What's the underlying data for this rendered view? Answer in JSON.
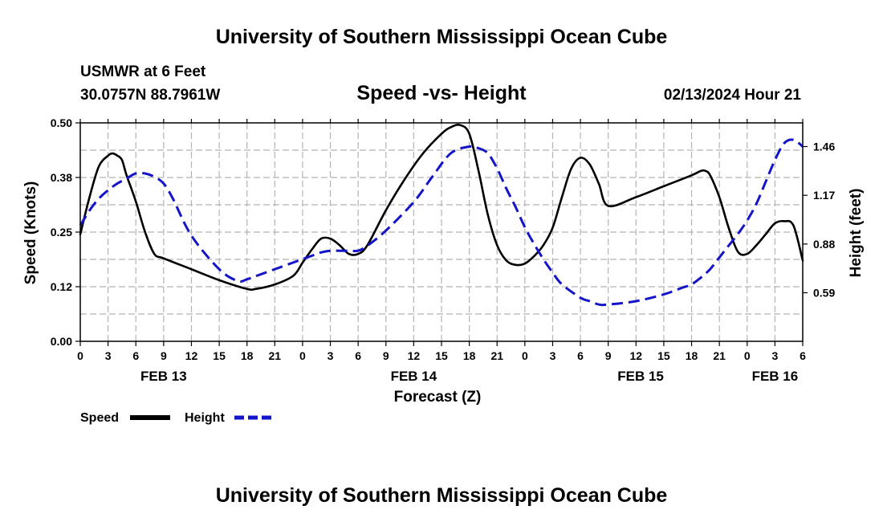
{
  "header": {
    "title": "University of Southern Mississippi Ocean Cube",
    "station": "USMWR at 6 Feet",
    "coords": "30.0757N  88.7961W",
    "chart_title": "Speed -vs- Height",
    "datetime": "02/13/2024 Hour 21"
  },
  "footer": {
    "title": "University of Southern Mississippi Ocean Cube"
  },
  "legend": {
    "speed_label": "Speed",
    "height_label": "Height"
  },
  "colors": {
    "speed": "#000000",
    "height": "#1414c8",
    "grid": "#b4b4b4"
  },
  "chart_data": {
    "type": "line",
    "title": "Speed -vs- Height",
    "xlabel": "Forecast (Z)",
    "ylabel": "Speed (Knots)",
    "y2label": "Height (feet)",
    "xlim": [
      0,
      78
    ],
    "ylim": [
      0,
      0.5
    ],
    "y2lim": [
      0.301,
      1.601
    ],
    "yticks": [
      {
        "v": 0.0,
        "label": "0.00"
      },
      {
        "v": 0.125,
        "label": "0.12"
      },
      {
        "v": 0.25,
        "label": "0.25"
      },
      {
        "v": 0.375,
        "label": "0.38"
      },
      {
        "v": 0.5,
        "label": "0.50"
      }
    ],
    "y2ticks": [
      {
        "v": 0.59,
        "label": "0.59"
      },
      {
        "v": 0.88,
        "label": "0.88"
      },
      {
        "v": 1.17,
        "label": "1.17"
      },
      {
        "v": 1.46,
        "label": "1.46"
      }
    ],
    "xticks": [
      {
        "v": 0,
        "label": "0"
      },
      {
        "v": 3,
        "label": "3"
      },
      {
        "v": 6,
        "label": "6"
      },
      {
        "v": 9,
        "label": "9"
      },
      {
        "v": 12,
        "label": "12"
      },
      {
        "v": 15,
        "label": "15"
      },
      {
        "v": 18,
        "label": "18"
      },
      {
        "v": 21,
        "label": "21"
      },
      {
        "v": 24,
        "label": "0"
      },
      {
        "v": 27,
        "label": "3"
      },
      {
        "v": 30,
        "label": "6"
      },
      {
        "v": 33,
        "label": "9"
      },
      {
        "v": 36,
        "label": "12"
      },
      {
        "v": 39,
        "label": "15"
      },
      {
        "v": 42,
        "label": "18"
      },
      {
        "v": 45,
        "label": "21"
      },
      {
        "v": 48,
        "label": "0"
      },
      {
        "v": 51,
        "label": "3"
      },
      {
        "v": 54,
        "label": "6"
      },
      {
        "v": 57,
        "label": "9"
      },
      {
        "v": 60,
        "label": "12"
      },
      {
        "v": 63,
        "label": "15"
      },
      {
        "v": 66,
        "label": "18"
      },
      {
        "v": 69,
        "label": "21"
      },
      {
        "v": 72,
        "label": "0"
      },
      {
        "v": 75,
        "label": "3"
      },
      {
        "v": 78,
        "label": "6"
      }
    ],
    "date_labels": [
      {
        "v": 9,
        "label": "FEB 13"
      },
      {
        "v": 36,
        "label": "FEB 14"
      },
      {
        "v": 60.5,
        "label": "FEB 15"
      },
      {
        "v": 75,
        "label": "FEB 16"
      }
    ],
    "series": [
      {
        "name": "Speed",
        "axis": "left",
        "style": "solid",
        "x": [
          0,
          1,
          2,
          3,
          3.5,
          4,
          4.5,
          5,
          6,
          7,
          8,
          9,
          12,
          15,
          18,
          19,
          21,
          23,
          24,
          25,
          26,
          27,
          28,
          29,
          30,
          31,
          33,
          35,
          37,
          39,
          40,
          41,
          42,
          43,
          44,
          45,
          46,
          47,
          48,
          49,
          50,
          51,
          52,
          53,
          54,
          55,
          56,
          57,
          60,
          63,
          66,
          67,
          67.5,
          68,
          69,
          70,
          71,
          72,
          73,
          74,
          75,
          76,
          77,
          78
        ],
        "values": [
          0.245,
          0.33,
          0.4,
          0.425,
          0.43,
          0.425,
          0.415,
          0.38,
          0.32,
          0.25,
          0.2,
          0.19,
          0.165,
          0.14,
          0.12,
          0.12,
          0.13,
          0.15,
          0.18,
          0.21,
          0.235,
          0.235,
          0.22,
          0.2,
          0.2,
          0.22,
          0.3,
          0.37,
          0.43,
          0.475,
          0.49,
          0.495,
          0.475,
          0.39,
          0.29,
          0.22,
          0.185,
          0.175,
          0.178,
          0.195,
          0.22,
          0.26,
          0.33,
          0.395,
          0.42,
          0.405,
          0.36,
          0.31,
          0.33,
          0.355,
          0.38,
          0.39,
          0.39,
          0.38,
          0.33,
          0.26,
          0.205,
          0.2,
          0.22,
          0.245,
          0.27,
          0.275,
          0.265,
          0.185
        ]
      },
      {
        "name": "Height",
        "axis": "right",
        "style": "dashed",
        "x": [
          0,
          1,
          2,
          3,
          4,
          5,
          6,
          7,
          8,
          9,
          10,
          12,
          15,
          17,
          18,
          19,
          21,
          23,
          24,
          25,
          26,
          27,
          28,
          29,
          30,
          31,
          33,
          36,
          38,
          40,
          42,
          43,
          44,
          45,
          46,
          47,
          48,
          49,
          50,
          51,
          52,
          54,
          55,
          56,
          57,
          60,
          63,
          65,
          66,
          67,
          68,
          69,
          70,
          71,
          72,
          73,
          74,
          75,
          76,
          77,
          78
        ],
        "values": [
          0.99,
          1.08,
          1.15,
          1.2,
          1.24,
          1.27,
          1.3,
          1.3,
          1.28,
          1.24,
          1.15,
          0.93,
          0.73,
          0.66,
          0.67,
          0.69,
          0.73,
          0.77,
          0.79,
          0.81,
          0.83,
          0.84,
          0.84,
          0.84,
          0.84,
          0.87,
          0.96,
          1.13,
          1.28,
          1.42,
          1.46,
          1.45,
          1.42,
          1.33,
          1.21,
          1.1,
          0.98,
          0.88,
          0.79,
          0.71,
          0.64,
          0.56,
          0.54,
          0.52,
          0.52,
          0.54,
          0.58,
          0.62,
          0.64,
          0.68,
          0.73,
          0.8,
          0.87,
          0.94,
          1.02,
          1.12,
          1.25,
          1.38,
          1.48,
          1.5,
          1.46
        ]
      }
    ]
  }
}
